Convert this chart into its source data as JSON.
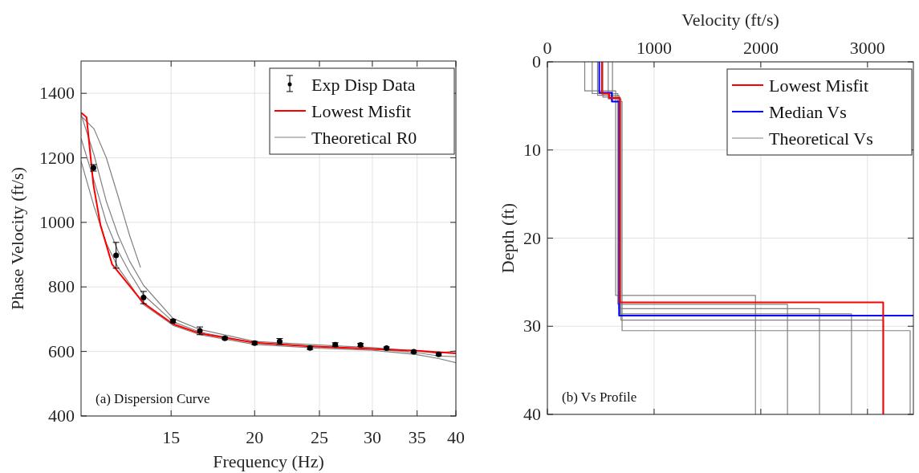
{
  "chart_data": [
    {
      "type": "line",
      "xlabel": "Frequency (Hz)",
      "ylabel": "Phase Velocity (ft/s)",
      "log": "x",
      "xlim": [
        11,
        40
      ],
      "ylim": [
        400,
        1500
      ],
      "xticks": [
        15,
        20,
        25,
        30,
        35,
        40
      ],
      "yticks": [
        400,
        600,
        800,
        1000,
        1200,
        1400
      ],
      "grid": true,
      "legend": "top right",
      "annotations": [
        "(a) Dispersion Curve"
      ],
      "series": [
        {
          "name": "Exp Disp Data",
          "type": "scatter",
          "color": "#000000",
          "x": [
            11.48,
            12.41,
            13.64,
            15.1,
            16.56,
            18.05,
            20,
            21.8,
            24.2,
            26.4,
            28.8,
            31.5,
            34.6,
            37.7
          ],
          "values": [
            1169,
            898,
            767,
            694,
            664,
            641,
            626,
            631,
            611,
            621,
            620,
            610,
            599,
            591
          ],
          "errors": [
            10,
            40,
            19,
            5,
            12,
            4,
            5,
            9,
            5,
            6,
            5,
            4,
            4,
            4
          ]
        },
        {
          "name": "Lowest Misfit",
          "color": "#ff0000",
          "x": [
            11,
            11.21,
            11.48,
            11.76,
            12.24,
            13.64,
            15.1,
            16.56,
            20,
            24.2,
            30,
            35,
            40
          ],
          "values": [
            1340,
            1326,
            1116,
            992,
            870,
            750,
            685,
            656,
            627,
            616,
            608,
            602,
            594
          ]
        },
        {
          "name": "Theoretical R0",
          "color": "#808080",
          "x": [
            11,
            11.5,
            12,
            12.5,
            13,
            13.64,
            15.1,
            16.56,
            20,
            25,
            30,
            35,
            37.7,
            40
          ],
          "values": [
            1335,
            1210,
            1065,
            960,
            880,
            805,
            702,
            668,
            631,
            620,
            612,
            601,
            594,
            602
          ]
        },
        {
          "color": "#808080",
          "x": [
            11,
            11.5,
            12,
            12.5,
            13,
            13.64,
            15.1,
            16.56,
            20,
            25,
            30,
            35,
            37.7,
            40
          ],
          "values": [
            1260,
            1130,
            1000,
            910,
            845,
            775,
            692,
            660,
            627,
            615,
            608,
            596,
            586,
            584
          ]
        },
        {
          "color": "#808080",
          "x": [
            11,
            11.5,
            12,
            12.5,
            13,
            13.64,
            15.1,
            16.56,
            20,
            25,
            30,
            35,
            37.7,
            40
          ],
          "values": [
            1190,
            1050,
            935,
            860,
            810,
            745,
            681,
            652,
            622,
            610,
            604,
            590,
            578,
            565
          ]
        },
        {
          "color": "#808080",
          "x": [
            11,
            11.5,
            12,
            12.5,
            13,
            13.5
          ],
          "values": [
            1330,
            1290,
            1200,
            1080,
            960,
            860
          ]
        }
      ]
    },
    {
      "type": "line",
      "xlabel": "Velocity (ft/s)",
      "ylabel": "Depth (ft)",
      "xlim": [
        0,
        3430
      ],
      "ylim": [
        40,
        0
      ],
      "xticks": [
        0,
        1000,
        2000,
        3000
      ],
      "yticks": [
        0,
        10,
        20,
        30,
        40
      ],
      "grid": true,
      "legend": "top right",
      "annotations": [
        "(b) Vs Profile"
      ],
      "series": [
        {
          "name": "Lowest Misfit",
          "color": "#ff0000",
          "x": [
            511,
            511,
            579,
            579,
            679,
            679,
            3147,
            3147
          ],
          "values": [
            0,
            3.6,
            3.6,
            4.1,
            4.1,
            27.3,
            27.3,
            40
          ]
        },
        {
          "name": "Median Vs",
          "color": "#0000ff",
          "x": [
            486,
            486,
            604,
            604,
            672,
            672,
            3430
          ],
          "values": [
            0,
            3.5,
            3.5,
            4.5,
            4.5,
            28.8,
            28.8
          ]
        },
        {
          "name": "Theoretical Vs",
          "color": "#808080",
          "x": [
            350,
            350,
            640,
            640,
            1950,
            1950
          ],
          "values": [
            0,
            3.3,
            3.3,
            26.5,
            26.5,
            40
          ]
        },
        {
          "color": "#808080",
          "x": [
            420,
            420,
            660,
            660,
            2250,
            2250
          ],
          "values": [
            0,
            3.6,
            3.6,
            27.5,
            27.5,
            40
          ]
        },
        {
          "color": "#808080",
          "x": [
            470,
            470,
            670,
            670,
            2550,
            2550
          ],
          "values": [
            0,
            3.8,
            3.8,
            28,
            28,
            40
          ]
        },
        {
          "color": "#808080",
          "x": [
            520,
            520,
            680,
            680,
            2850,
            2850
          ],
          "values": [
            0,
            4,
            4,
            28.6,
            28.6,
            40
          ]
        },
        {
          "color": "#808080",
          "x": [
            570,
            570,
            690,
            690,
            3150,
            3150
          ],
          "values": [
            0,
            4.2,
            4.2,
            29.3,
            29.3,
            40
          ]
        },
        {
          "color": "#808080",
          "x": [
            610,
            610,
            700,
            700,
            3400,
            3400
          ],
          "values": [
            0,
            4.5,
            4.5,
            30.5,
            30.5,
            40
          ]
        }
      ]
    }
  ]
}
